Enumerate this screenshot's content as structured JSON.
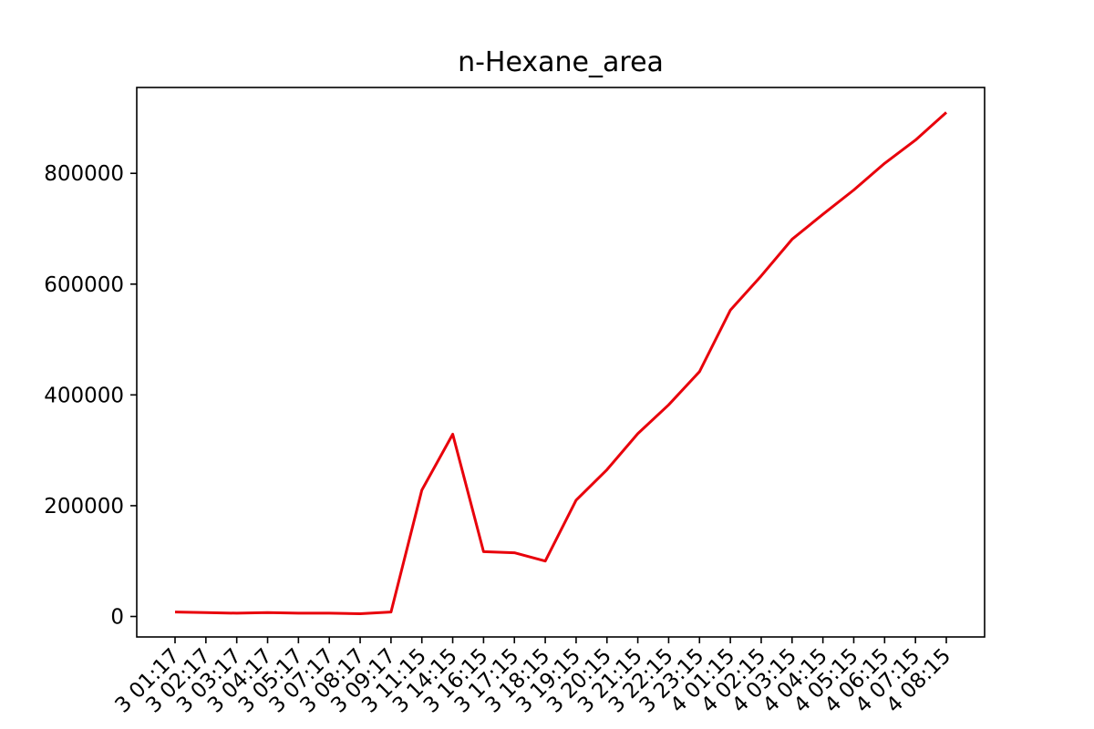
{
  "chart_data": {
    "type": "line",
    "title": "n-Hexane_area",
    "xlabel": "",
    "ylabel": "",
    "x": [
      "3 01:17",
      "3 02:17",
      "3 03:17",
      "3 04:17",
      "3 05:17",
      "3 07:17",
      "3 08:17",
      "3 09:17",
      "3 11:15",
      "3 14:15",
      "3 16:15",
      "3 17:15",
      "3 18:15",
      "3 19:15",
      "3 20:15",
      "3 21:15",
      "3 22:15",
      "3 23:15",
      "4 01:15",
      "4 02:15",
      "4 03:15",
      "4 04:15",
      "4 05:15",
      "4 06:15",
      "4 07:15",
      "4 08:15"
    ],
    "series": [
      {
        "values": [
          8000,
          7000,
          6000,
          7000,
          6000,
          6000,
          5000,
          8000,
          228000,
          329000,
          117000,
          115000,
          100000,
          210000,
          265000,
          330000,
          382000,
          442000,
          553000,
          615000,
          681000,
          726000,
          770000,
          818000,
          860000,
          910000
        ],
        "color": "#e8000b"
      }
    ],
    "yticks": [
      "0",
      "200000",
      "400000",
      "600000",
      "800000"
    ],
    "ylim": [
      -37000,
      955000
    ],
    "grid": false,
    "legend": "none"
  }
}
